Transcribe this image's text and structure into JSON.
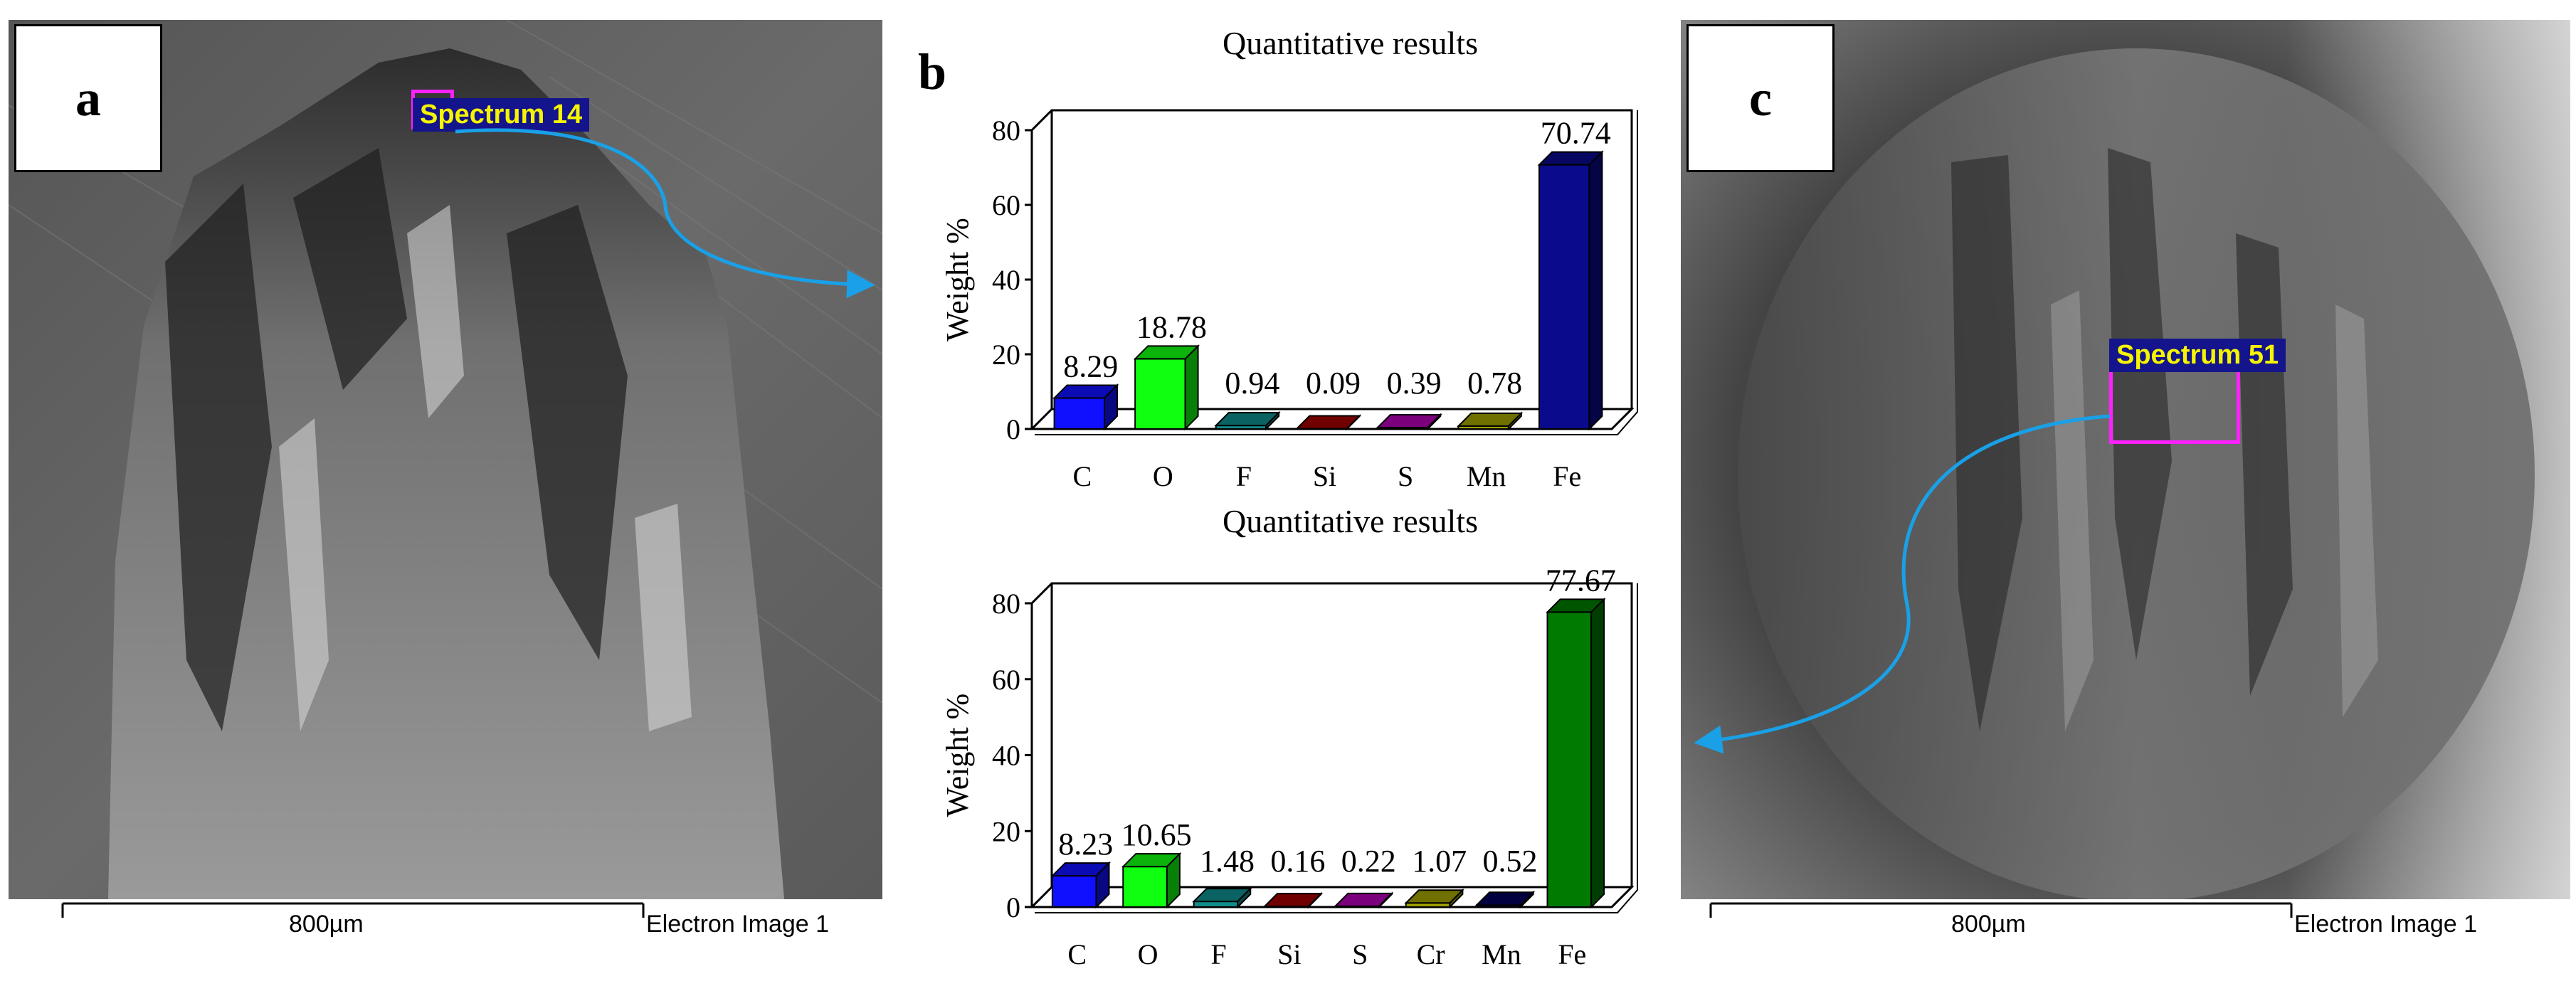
{
  "panels": {
    "a": {
      "label": "a",
      "spectrum": "Spectrum 14",
      "scale": "800µm",
      "caption": "Electron Image 1"
    },
    "b": {
      "label": "b"
    },
    "c": {
      "label": "c",
      "spectrum": "Spectrum 51",
      "scale": "800µm",
      "caption": "Electron Image 1"
    }
  },
  "colors": {
    "C": "#1010ff",
    "O": "#10ff10",
    "F": "#108c8c",
    "Si": "#a00000",
    "S": "#b000b0",
    "Cr": "#a0a000",
    "Mn_top": "#a0a000",
    "Mn_bottom": "#00005a",
    "Fe_top": "#0a0a8c",
    "Fe_bottom": "#007a00",
    "arrow": "#1aa0e6"
  },
  "chart_data": [
    {
      "type": "bar",
      "title": "Quantitative results",
      "ylabel": "Weight %",
      "xlabel": "",
      "ylim": [
        0,
        80
      ],
      "yticks": [
        0,
        20,
        40,
        60,
        80
      ],
      "categories": [
        "C",
        "O",
        "F",
        "Si",
        "S",
        "Mn",
        "Fe"
      ],
      "values": [
        8.29,
        18.78,
        0.94,
        0.09,
        0.39,
        0.78,
        70.74
      ],
      "labels": [
        "8.29",
        "18.78",
        "0.94",
        "0.09",
        "0.39",
        "0.78",
        "70.74"
      ]
    },
    {
      "type": "bar",
      "title": "Quantitative results",
      "ylabel": "Weight %",
      "xlabel": "",
      "ylim": [
        0,
        80
      ],
      "yticks": [
        0,
        20,
        40,
        60,
        80
      ],
      "categories": [
        "C",
        "O",
        "F",
        "Si",
        "S",
        "Cr",
        "Mn",
        "Fe"
      ],
      "values": [
        8.23,
        10.65,
        1.48,
        0.16,
        0.22,
        1.07,
        0.52,
        77.67
      ],
      "labels": [
        "8.23",
        "10.65",
        "1.48",
        "0.16",
        "0.22",
        "1.07",
        "0.52",
        "77.67"
      ]
    }
  ]
}
